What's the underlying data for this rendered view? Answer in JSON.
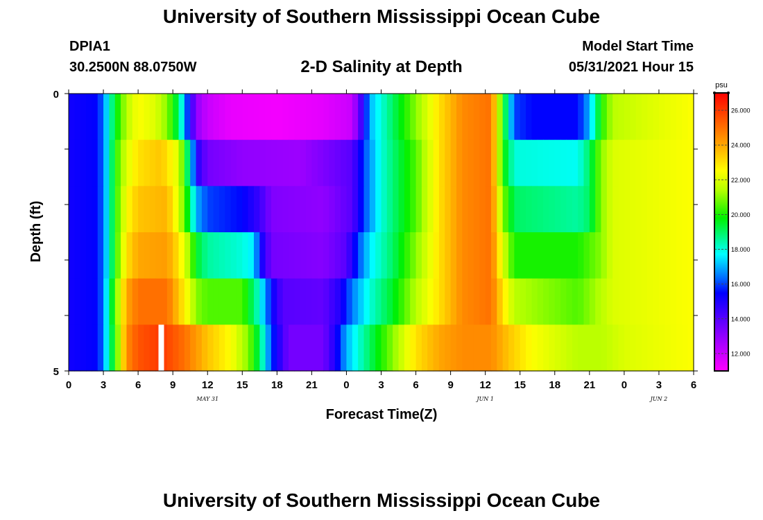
{
  "page": {
    "title": "University of Southern Mississippi Ocean Cube",
    "footer_title": "University of Southern Mississippi Ocean Cube",
    "station_id": "DPIA1",
    "coordinates": "30.2500N  88.0750W",
    "subtitle": "2-D Salinity at Depth",
    "model_start_label": "Model Start Time",
    "model_start_value": "05/31/2021 Hour 15"
  },
  "chart_data": {
    "type": "heatmap",
    "title": "2-D Salinity at Depth",
    "xlabel": "Forecast Time(Z)",
    "ylabel": "Depth (ft)",
    "x_hours": [
      0,
      54
    ],
    "ylim": [
      0,
      5
    ],
    "y_tick_labels": [
      "0",
      "5"
    ],
    "x_tick_labels": [
      "0",
      "3",
      "6",
      "9",
      "12",
      "15",
      "18",
      "21",
      "0",
      "3",
      "6",
      "9",
      "12",
      "15",
      "18",
      "21",
      "0",
      "3",
      "6"
    ],
    "date_labels": [
      {
        "label": "MAY 31",
        "hour": 12
      },
      {
        "label": "JUN 1",
        "hour": 36
      },
      {
        "label": "JUN 2",
        "hour": 51
      }
    ],
    "colorbar": {
      "unit": "psu",
      "range": [
        11,
        27
      ],
      "tick_values": [
        12,
        14,
        16,
        18,
        20,
        22,
        24,
        26
      ],
      "tick_labels": [
        "12.000",
        "14.000",
        "16.000",
        "18.000",
        "20.000",
        "22.000",
        "24.000",
        "26.000"
      ]
    },
    "depth_rows": [
      {
        "depth": 0,
        "keys": [
          [
            0,
            15.2
          ],
          [
            2.5,
            15.5
          ],
          [
            3,
            16.5
          ],
          [
            3.5,
            18
          ],
          [
            4,
            19.5
          ],
          [
            5,
            21.5
          ],
          [
            6,
            22.5
          ],
          [
            7.5,
            22
          ],
          [
            8.5,
            21
          ],
          [
            9.5,
            19
          ],
          [
            10.5,
            15
          ],
          [
            11,
            13
          ],
          [
            12,
            12
          ],
          [
            14,
            11.4
          ],
          [
            18,
            11.2
          ],
          [
            22,
            11.5
          ],
          [
            24.5,
            12
          ],
          [
            25.5,
            15
          ],
          [
            26,
            17
          ],
          [
            28,
            19
          ],
          [
            30,
            21
          ],
          [
            32,
            23
          ],
          [
            34,
            24.5
          ],
          [
            36.5,
            25
          ],
          [
            37.5,
            20
          ],
          [
            38.5,
            16
          ],
          [
            40,
            15.5
          ],
          [
            44,
            15.5
          ],
          [
            45,
            17
          ],
          [
            46,
            20
          ],
          [
            47,
            21.5
          ],
          [
            50,
            22
          ],
          [
            54,
            22.5
          ]
        ]
      },
      {
        "depth": 1,
        "keys": [
          [
            0,
            15.2
          ],
          [
            2.5,
            15.5
          ],
          [
            3,
            16.5
          ],
          [
            3.5,
            18
          ],
          [
            4,
            20
          ],
          [
            5,
            22
          ],
          [
            6,
            23
          ],
          [
            8,
            23.5
          ],
          [
            9.5,
            22
          ],
          [
            10.5,
            18
          ],
          [
            11,
            15
          ],
          [
            12,
            13.5
          ],
          [
            15,
            13
          ],
          [
            20,
            12.8
          ],
          [
            24.5,
            14
          ],
          [
            25.5,
            16
          ],
          [
            27,
            18
          ],
          [
            30,
            20.5
          ],
          [
            32,
            23
          ],
          [
            34,
            24.5
          ],
          [
            36.5,
            25
          ],
          [
            37.5,
            20
          ],
          [
            38.5,
            18
          ],
          [
            44,
            17.8
          ],
          [
            45,
            19
          ],
          [
            46,
            21
          ],
          [
            47,
            22
          ],
          [
            54,
            22.5
          ]
        ]
      },
      {
        "depth": 2,
        "keys": [
          [
            0,
            15.2
          ],
          [
            2.5,
            15.5
          ],
          [
            3,
            16.5
          ],
          [
            3.5,
            18
          ],
          [
            4,
            20
          ],
          [
            5,
            22.5
          ],
          [
            6,
            23.5
          ],
          [
            8.5,
            23.8
          ],
          [
            9.5,
            22
          ],
          [
            10.5,
            19
          ],
          [
            11,
            17
          ],
          [
            12,
            16
          ],
          [
            15,
            15.5
          ],
          [
            16.5,
            14.5
          ],
          [
            17.5,
            13.3
          ],
          [
            22,
            13
          ],
          [
            24.5,
            14
          ],
          [
            25.5,
            16
          ],
          [
            27,
            18
          ],
          [
            30,
            20.5
          ],
          [
            32,
            23
          ],
          [
            34,
            24.5
          ],
          [
            36.5,
            25
          ],
          [
            37.5,
            21
          ],
          [
            38.5,
            19
          ],
          [
            44,
            18.5
          ],
          [
            45,
            19
          ],
          [
            46,
            21
          ],
          [
            47,
            22
          ],
          [
            54,
            22.5
          ]
        ]
      },
      {
        "depth": 3,
        "keys": [
          [
            0,
            15.2
          ],
          [
            2.5,
            15.5
          ],
          [
            3,
            16.5
          ],
          [
            3.5,
            18
          ],
          [
            4,
            20
          ],
          [
            5,
            23
          ],
          [
            6,
            24
          ],
          [
            8.5,
            24.2
          ],
          [
            9.5,
            23
          ],
          [
            10.5,
            21
          ],
          [
            11,
            19.5
          ],
          [
            12,
            18.5
          ],
          [
            15,
            18
          ],
          [
            16,
            17.5
          ],
          [
            16.5,
            15.5
          ],
          [
            17.5,
            13.5
          ],
          [
            22,
            13.2
          ],
          [
            24,
            14
          ],
          [
            25,
            16
          ],
          [
            26,
            17.5
          ],
          [
            28,
            19
          ],
          [
            30,
            21
          ],
          [
            32,
            23
          ],
          [
            34,
            24.5
          ],
          [
            36.5,
            25
          ],
          [
            37.5,
            22
          ],
          [
            38.5,
            20
          ],
          [
            44,
            20
          ],
          [
            45,
            20.5
          ],
          [
            46,
            21
          ],
          [
            47,
            22
          ],
          [
            54,
            22.5
          ]
        ]
      },
      {
        "depth": 4,
        "keys": [
          [
            0,
            15.2
          ],
          [
            2.5,
            15.5
          ],
          [
            3,
            16.5
          ],
          [
            3.5,
            18.5
          ],
          [
            4,
            20.5
          ],
          [
            5,
            24
          ],
          [
            6,
            25
          ],
          [
            8.5,
            25
          ],
          [
            9.5,
            23.5
          ],
          [
            10.5,
            22
          ],
          [
            11,
            21
          ],
          [
            12,
            20.5
          ],
          [
            15,
            20.5
          ],
          [
            16.5,
            18
          ],
          [
            17.5,
            15.5
          ],
          [
            18.5,
            14
          ],
          [
            22,
            13.8
          ],
          [
            23.5,
            15
          ],
          [
            24.5,
            16.5
          ],
          [
            26,
            18
          ],
          [
            28,
            19.5
          ],
          [
            30,
            21.5
          ],
          [
            32,
            23
          ],
          [
            34,
            24.5
          ],
          [
            36.5,
            25
          ],
          [
            37.5,
            23
          ],
          [
            38.5,
            21.5
          ],
          [
            44,
            20.5
          ],
          [
            45,
            21
          ],
          [
            46,
            21.5
          ],
          [
            47,
            22
          ],
          [
            54,
            22.5
          ]
        ]
      },
      {
        "depth": 5,
        "keys": [
          [
            0,
            15.2
          ],
          [
            2.5,
            15.5
          ],
          [
            3,
            16.5
          ],
          [
            3.5,
            18.5
          ],
          [
            4,
            20
          ],
          [
            5,
            24.5
          ],
          [
            6,
            25.5
          ],
          [
            8,
            26
          ],
          [
            10,
            25
          ],
          [
            12,
            23.5
          ],
          [
            14,
            22.5
          ],
          [
            15.5,
            21
          ],
          [
            16.5,
            19
          ],
          [
            17.5,
            16
          ],
          [
            19,
            13.5
          ],
          [
            22,
            13.5
          ],
          [
            23,
            15
          ],
          [
            24,
            17
          ],
          [
            26,
            19
          ],
          [
            28,
            21
          ],
          [
            30,
            23
          ],
          [
            32,
            24
          ],
          [
            34,
            24.5
          ],
          [
            36.5,
            24.5
          ],
          [
            38,
            23.5
          ],
          [
            40,
            22.5
          ],
          [
            42,
            22
          ],
          [
            44,
            21.5
          ],
          [
            46,
            21.5
          ],
          [
            48,
            22
          ],
          [
            54,
            22.5
          ]
        ]
      }
    ],
    "missing_cell": {
      "depth": 5,
      "hour": 8
    }
  }
}
